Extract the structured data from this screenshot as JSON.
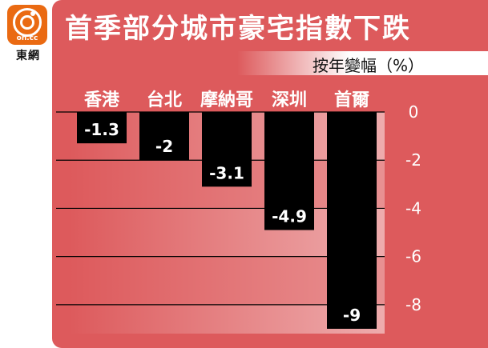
{
  "logo": {
    "site_text": "on.cc",
    "brand_text": "東網"
  },
  "chart_data": {
    "type": "bar",
    "title": "首季部分城市豪宅指數下跌",
    "unit": "按年變幅（%）",
    "categories": [
      "香港",
      "台北",
      "摩納哥",
      "深圳",
      "首爾"
    ],
    "values": [
      -1.3,
      -2,
      -3.1,
      -4.9,
      -9
    ],
    "value_labels": [
      "-1.3",
      "-2",
      "-3.1",
      "-4.9",
      "-9"
    ],
    "yticks": [
      "0",
      "-2",
      "-4",
      "-6",
      "-8"
    ],
    "ylim": [
      -9.2,
      0
    ],
    "grid": true,
    "colors": {
      "bar": "#000000",
      "background": "#dd5a5c",
      "text": "#ffffff"
    }
  }
}
